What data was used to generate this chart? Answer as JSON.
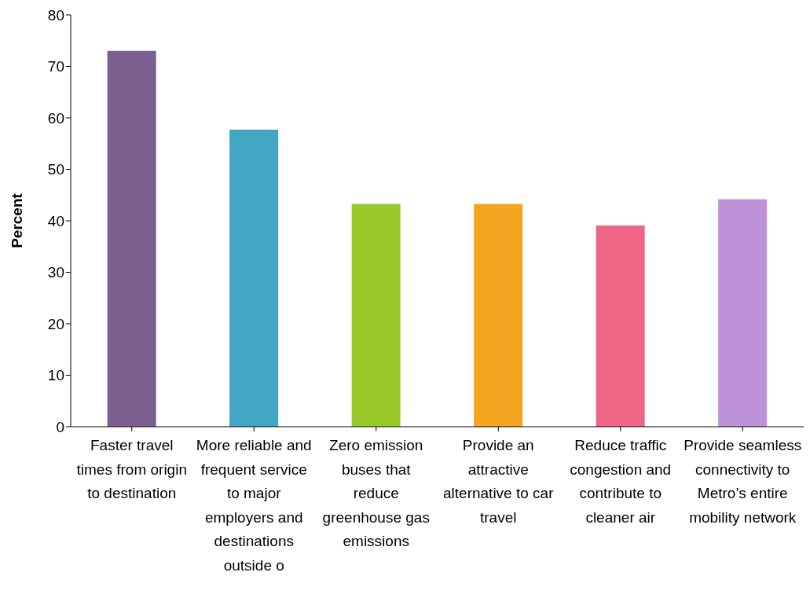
{
  "chart_data": {
    "type": "bar",
    "ylabel": "Percent",
    "categories": [
      "Faster travel times from origin to destination",
      "More reliable and frequent service to major employers and destinations outside o",
      "Zero emission buses that reduce greenhouse gas emissions",
      "Provide an attractive alternative to car travel",
      "Reduce traffic congestion and contribute to cleaner air",
      "Provide seamless connectivity to Metro’s entire mobility network"
    ],
    "values": [
      73.0,
      57.7,
      43.3,
      43.3,
      39.1,
      44.2
    ],
    "colors": [
      "#7b5f8f",
      "#41a5c4",
      "#99c928",
      "#f4a41e",
      "#ef6585",
      "#bf91d9"
    ],
    "ylim": [
      0,
      80
    ],
    "yticks": [
      0,
      10,
      20,
      30,
      40,
      50,
      60,
      70,
      80
    ],
    "grid": false,
    "legend": false
  }
}
